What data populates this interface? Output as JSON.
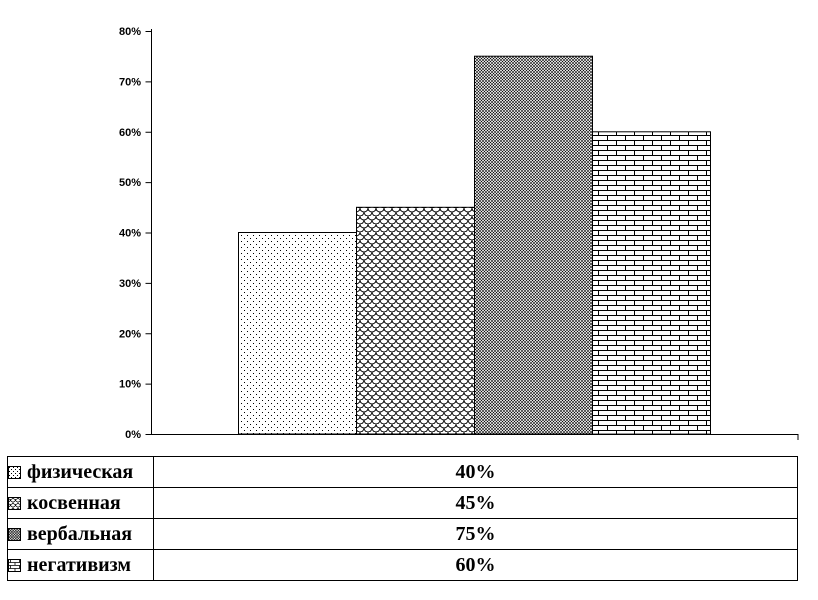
{
  "chart_data": {
    "type": "bar",
    "categories": [
      "физическая",
      "косвенная",
      "вербальная",
      "негативизм"
    ],
    "values": [
      40,
      45,
      75,
      60
    ],
    "unit": "%",
    "title": "",
    "xlabel": "",
    "ylabel": "",
    "ylim": [
      0,
      80
    ],
    "ytick_labels": [
      "0%",
      "10%",
      "20%",
      "30%",
      "40%",
      "50%",
      "60%",
      "70%",
      "80%"
    ],
    "grid": false,
    "legend_position": "bottom-table",
    "patterns": [
      "dots",
      "scales",
      "dense",
      "bricks"
    ],
    "bar_fill_color": "#ffffff",
    "line_color": "#000000"
  },
  "legend_table": {
    "rows": [
      {
        "label": "физическая",
        "value": "40%",
        "swatch": "dots"
      },
      {
        "label": "косвенная",
        "value": "45%",
        "swatch": "scales"
      },
      {
        "label": "вербальная",
        "value": "75%",
        "swatch": "dense"
      },
      {
        "label": "негативизм",
        "value": "60%",
        "swatch": "bricks"
      }
    ]
  }
}
